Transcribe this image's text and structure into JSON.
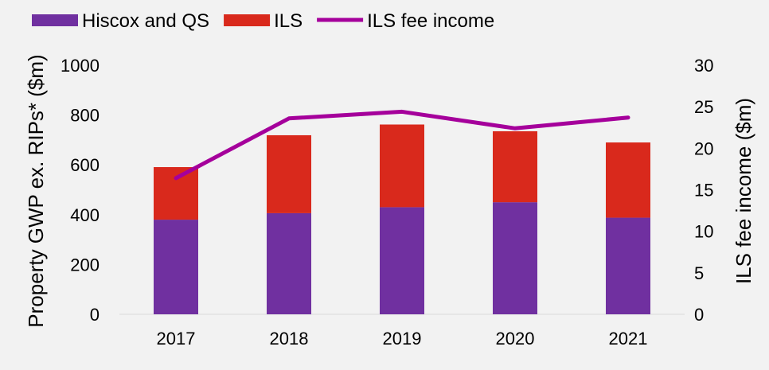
{
  "chart_data": {
    "type": "bar",
    "stacked": true,
    "categories": [
      "2017",
      "2018",
      "2019",
      "2020",
      "2021"
    ],
    "series": [
      {
        "name": "Hiscox and QS",
        "type": "bar",
        "axis": "left",
        "color": "#7030a0",
        "values": [
          380,
          406,
          430,
          450,
          388
        ]
      },
      {
        "name": "ILS",
        "type": "bar",
        "axis": "left",
        "color": "#d9291c",
        "values": [
          211,
          313,
          332,
          285,
          302
        ]
      },
      {
        "name": "ILS fee income",
        "type": "line",
        "axis": "right",
        "color": "#a5009b",
        "values": [
          16.4,
          23.6,
          24.4,
          22.4,
          23.7
        ]
      }
    ],
    "ylabel": "Property GWP ex. RIPs* ($m)",
    "y2label": "ILS fee income ($m)",
    "ylim": [
      0,
      1000
    ],
    "yticks": [
      "0",
      "200",
      "400",
      "600",
      "800",
      "1000"
    ],
    "y2lim": [
      0,
      30
    ],
    "y2ticks": [
      "0",
      "5",
      "10",
      "15",
      "20",
      "25",
      "30"
    ],
    "grid": false,
    "legend": "top-left"
  }
}
